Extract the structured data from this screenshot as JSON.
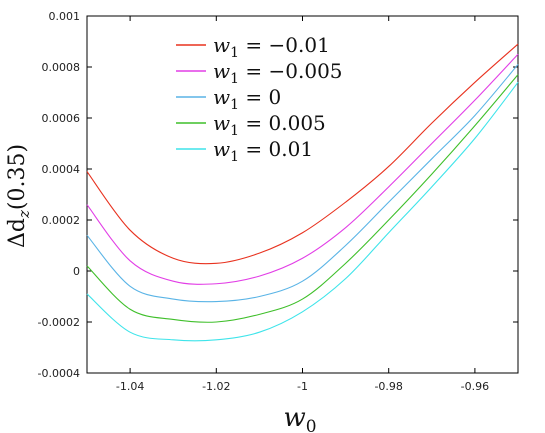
{
  "chart_data": {
    "type": "line",
    "xlabel_main": "w",
    "xlabel_sub": "0",
    "ylabel_main": "Δd",
    "ylabel_sub": "z",
    "ylabel_rest": "(0.35)",
    "xlim": [
      -1.05,
      -0.95
    ],
    "ylim": [
      -0.0004,
      0.001
    ],
    "x_ticks": [
      -1.04,
      -1.02,
      -1,
      -0.98,
      -0.96
    ],
    "x_tick_labels": [
      "-1.04",
      "-1.02",
      "-1",
      "-0.98",
      "-0.96"
    ],
    "y_ticks": [
      -0.0004,
      -0.0002,
      0,
      0.0002,
      0.0004,
      0.0006,
      0.0008,
      0.001
    ],
    "y_tick_labels": [
      "-0.0004",
      "-0.0002",
      "0",
      "0.0002",
      "0.0004",
      "0.0006",
      "0.0008",
      "0.001"
    ],
    "grid": false,
    "legend_position": "top-left",
    "series": [
      {
        "name": "w1 = −0.01",
        "legend_lhs": "w",
        "legend_sub": "1",
        "legend_rhs": " = −0.01",
        "color": "#e8321f",
        "x": [
          -1.05,
          -1.04,
          -1.03,
          -1.02,
          -1.01,
          -1.0,
          -0.99,
          -0.98,
          -0.97,
          -0.96,
          -0.95
        ],
        "y": [
          0.00039,
          0.00016,
          5e-05,
          3e-05,
          7e-05,
          0.00015,
          0.00027,
          0.00041,
          0.00058,
          0.00074,
          0.00089
        ]
      },
      {
        "name": "w1 = −0.005",
        "legend_lhs": "w",
        "legend_sub": "1",
        "legend_rhs": " = −0.005",
        "color": "#e23ee6",
        "x": [
          -1.05,
          -1.04,
          -1.03,
          -1.02,
          -1.01,
          -1.0,
          -0.99,
          -0.98,
          -0.97,
          -0.96,
          -0.95
        ],
        "y": [
          0.00026,
          4e-05,
          -4e-05,
          -5e-05,
          -2e-05,
          5e-05,
          0.00017,
          0.00033,
          0.0005,
          0.00067,
          0.00085
        ]
      },
      {
        "name": "w1 = 0",
        "legend_lhs": "w",
        "legend_sub": "1",
        "legend_rhs": " = 0",
        "color": "#5ab4e6",
        "x": [
          -1.05,
          -1.04,
          -1.03,
          -1.02,
          -1.01,
          -1.0,
          -0.99,
          -0.98,
          -0.97,
          -0.96,
          -0.95
        ],
        "y": [
          0.00014,
          -6e-05,
          -0.00011,
          -0.00012,
          -0.0001,
          -4e-05,
          0.0001,
          0.00027,
          0.00044,
          0.00061,
          0.00081
        ]
      },
      {
        "name": "w1 = 0.005",
        "legend_lhs": "w",
        "legend_sub": "1",
        "legend_rhs": " = 0.005",
        "color": "#3fbf2a",
        "x": [
          -1.05,
          -1.04,
          -1.03,
          -1.02,
          -1.01,
          -1.0,
          -0.99,
          -0.98,
          -0.97,
          -0.96,
          -0.95
        ],
        "y": [
          2e-05,
          -0.00015,
          -0.00019,
          -0.0002,
          -0.00017,
          -0.00011,
          3e-05,
          0.0002,
          0.00038,
          0.00057,
          0.00077
        ]
      },
      {
        "name": "w1 = 0.01",
        "legend_lhs": "w",
        "legend_sub": "1",
        "legend_rhs": " = 0.01",
        "color": "#3ee4ea",
        "x": [
          -1.05,
          -1.04,
          -1.03,
          -1.02,
          -1.01,
          -1.0,
          -0.99,
          -0.98,
          -0.97,
          -0.96,
          -0.95
        ],
        "y": [
          -9e-05,
          -0.00024,
          -0.00027,
          -0.00027,
          -0.00024,
          -0.00016,
          -3e-05,
          0.00015,
          0.00033,
          0.00052,
          0.00074
        ]
      }
    ]
  }
}
